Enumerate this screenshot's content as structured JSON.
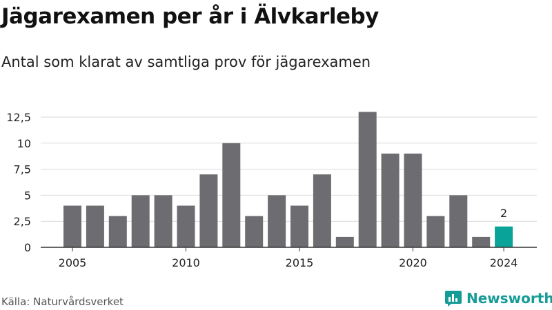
{
  "title": "Jägarexamen per år i Älvkarleby",
  "subtitle": "Antal som klarat av samtliga prov för jägarexamen",
  "source": "Källa: Naturvårdsverket",
  "brand": {
    "name": "Newsworthy",
    "icon": "newsworthy-logo-icon"
  },
  "colors": {
    "bar": "#6d6c70",
    "highlight": "#0aa399",
    "grid": "#d9d9d9",
    "axis": "#333333",
    "brand": "#169c96"
  },
  "chart_data": {
    "type": "bar",
    "title": "Jägarexamen per år i Älvkarleby",
    "subtitle": "Antal som klarat av samtliga prov för jägarexamen",
    "categories": [
      2005,
      2006,
      2007,
      2008,
      2009,
      2010,
      2011,
      2012,
      2013,
      2014,
      2015,
      2016,
      2017,
      2018,
      2019,
      2020,
      2021,
      2022,
      2023,
      2024
    ],
    "values": [
      4,
      4,
      3,
      5,
      5,
      4,
      7,
      10,
      3,
      5,
      4,
      7,
      1,
      13,
      9,
      9,
      3,
      5,
      1,
      2
    ],
    "highlight_index": 19,
    "data_labels": [
      {
        "index": 19,
        "text": "2"
      }
    ],
    "x_ticks": [
      "2005",
      "2010",
      "2015",
      "2020",
      "2024"
    ],
    "y_ticks": [
      {
        "value": 0,
        "label": "0"
      },
      {
        "value": 2.5,
        "label": "2,5"
      },
      {
        "value": 5,
        "label": "5"
      },
      {
        "value": 7.5,
        "label": "7,5"
      },
      {
        "value": 10,
        "label": "10"
      },
      {
        "value": 12.5,
        "label": "12,5"
      }
    ],
    "ylim": [
      0,
      13
    ],
    "xlabel": "",
    "ylabel": "",
    "grid": true
  }
}
